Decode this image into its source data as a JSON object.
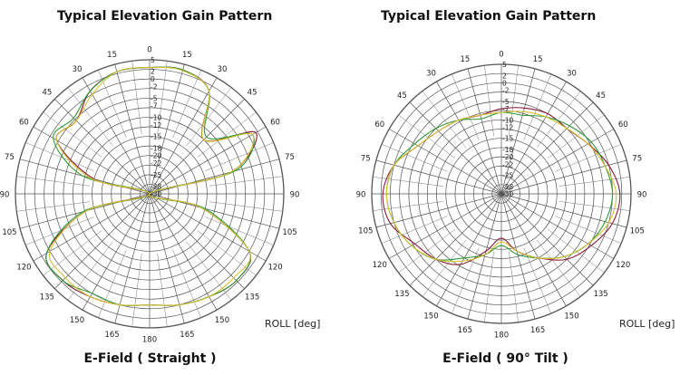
{
  "panels": [
    {
      "title": "Typical Elevation Gain Pattern",
      "caption": "E-Field ( Straight )",
      "roll_label": "ROLL  [deg]"
    },
    {
      "title": "Typical Elevation Gain Pattern",
      "caption": "E-Field ( 90° Tilt )",
      "roll_label": "ROLL  [deg]"
    }
  ],
  "chart_data": [
    {
      "type": "polar-line",
      "title": "Typical Elevation Gain Pattern",
      "subtitle": "E-Field ( Straight )",
      "angle_label": "ROLL  [deg]",
      "angle_ticks": [
        0,
        15,
        30,
        45,
        60,
        75,
        90,
        105,
        120,
        135,
        150,
        165,
        180,
        -165,
        -150,
        -135,
        -120,
        -105,
        -90,
        -75,
        -60,
        -45,
        -30,
        -15
      ],
      "angle_tick_labels": [
        "0",
        "15",
        "30",
        "45",
        "60",
        "75",
        "90",
        "105",
        "120",
        "135",
        "150",
        "165",
        "180",
        "165",
        "150",
        "135",
        "120",
        "105",
        "90",
        "75",
        "60",
        "45",
        "30",
        "15"
      ],
      "radial_ticks": [
        5,
        2,
        0,
        -2,
        -5,
        -7,
        -10,
        -12,
        -15,
        -18,
        -20,
        -22,
        -25,
        -28,
        -30
      ],
      "rlim": [
        -30,
        5
      ],
      "grid": true,
      "series": [
        {
          "color": "#8b1a3a",
          "r": [
            3,
            3.5,
            1,
            -10,
            2,
            -8,
            -30,
            -16,
            0,
            2,
            1,
            0,
            -1,
            0,
            1,
            2,
            1,
            -13,
            -30,
            -15,
            -2,
            -3,
            1,
            3
          ]
        },
        {
          "color": "#2f9a3a",
          "r": [
            3,
            3.5,
            1,
            -9,
            1,
            -7,
            -30,
            -15,
            0,
            2,
            1,
            0,
            -1,
            0,
            0,
            2,
            1,
            -12,
            -30,
            -12,
            -1,
            -2,
            1,
            3
          ]
        },
        {
          "color": "#d4c230",
          "r": [
            3,
            3.3,
            1,
            -10,
            1,
            -8,
            -30,
            -16,
            0,
            1,
            1,
            0,
            -1,
            0,
            1,
            1,
            0,
            -13,
            -30,
            -14,
            -2,
            -3,
            0,
            3
          ]
        }
      ]
    },
    {
      "type": "polar-line",
      "title": "Typical Elevation Gain Pattern",
      "subtitle": "E-Field ( 90° Tilt )",
      "angle_label": "ROLL  [deg]",
      "angle_ticks": [
        0,
        15,
        30,
        45,
        60,
        75,
        90,
        105,
        120,
        135,
        150,
        165,
        180,
        -165,
        -150,
        -135,
        -120,
        -105,
        -90,
        -75,
        -60,
        -45,
        -30,
        -15
      ],
      "angle_tick_labels": [
        "0",
        "15",
        "30",
        "45",
        "60",
        "75",
        "90",
        "105",
        "120",
        "135",
        "150",
        "165",
        "180",
        "165",
        "150",
        "135",
        "120",
        "105",
        "90",
        "75",
        "60",
        "45",
        "30",
        "15"
      ],
      "radial_ticks": [
        5,
        2,
        0,
        -2,
        -5,
        -7,
        -10,
        -12,
        -15,
        -18,
        -20,
        -22,
        -25,
        -28,
        -30
      ],
      "rlim": [
        -30,
        5
      ],
      "grid": true,
      "series": [
        {
          "color": "#8b1a3a",
          "r": [
            -7,
            -6,
            -5,
            -5,
            -3,
            0,
            2,
            1,
            -2,
            -5,
            -10,
            -14,
            -18,
            -14,
            -8,
            -5,
            -3,
            1,
            2,
            0,
            -4,
            -6,
            -7,
            -8
          ]
        },
        {
          "color": "#2f9a3a",
          "r": [
            -8,
            -8,
            -6,
            -4,
            -2,
            -1,
            0,
            -1,
            -3,
            -6,
            -10,
            -13,
            -16,
            -13,
            -10,
            -5,
            -2,
            0,
            1,
            0,
            -3,
            -5,
            -7,
            -9
          ]
        },
        {
          "color": "#d4c230",
          "r": [
            -8,
            -7,
            -6,
            -5,
            -3,
            -1,
            1,
            0,
            -3,
            -6,
            -10,
            -14,
            -17,
            -13,
            -9,
            -5,
            -2,
            0,
            1,
            0,
            -4,
            -6,
            -7,
            -8
          ]
        }
      ]
    }
  ]
}
